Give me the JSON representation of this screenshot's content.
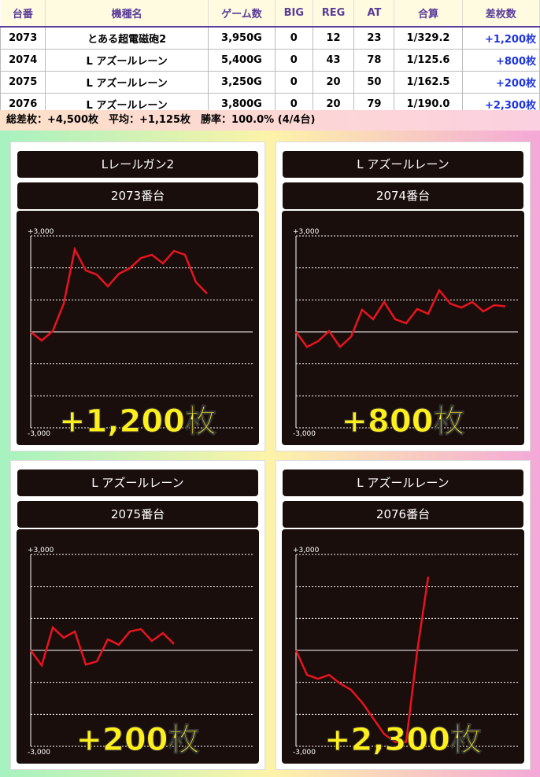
{
  "table": {
    "headers": [
      "台番",
      "機種名",
      "ゲーム数",
      "BIG",
      "REG",
      "AT",
      "合算",
      "差枚数"
    ],
    "rows": [
      [
        "2073",
        "とある超電磁砲2",
        "3,950G",
        "0",
        "12",
        "23",
        "1/329.2",
        "+1,200枚"
      ],
      [
        "2074",
        "L アズールレーン",
        "5,400G",
        "0",
        "43",
        "78",
        "1/125.6",
        "+800枚"
      ],
      [
        "2075",
        "L アズールレーン",
        "3,250G",
        "0",
        "20",
        "50",
        "1/162.5",
        "+200枚"
      ],
      [
        "2076",
        "L アズールレーン",
        "3,800G",
        "0",
        "20",
        "79",
        "1/190.0",
        "+2,300枚"
      ]
    ]
  },
  "summary": "総差枚：+4,500枚　平均：+1,125枚　勝率：100.0% (4/4台)",
  "panels": [
    {
      "machine": "Lレールガン2",
      "unit": "2073番台",
      "result": "+1,200枚",
      "chart_data": {
        "type": "line",
        "ylim": [
          -3000,
          3000
        ],
        "yticks": [
          {
            "value": 3000,
            "label": "+3,000"
          },
          {
            "value": -3000,
            "label": "-3,000"
          }
        ],
        "ygrid": [
          2000,
          1000,
          0,
          -1000,
          -2000
        ],
        "color": "#e8141e",
        "values": [
          0,
          -270,
          25,
          885,
          2580,
          1920,
          1790,
          1425,
          1815,
          1990,
          2310,
          2410,
          2140,
          2530,
          2410,
          1550,
          1200
        ]
      }
    },
    {
      "machine": "L アズールレーン",
      "unit": "2074番台",
      "result": "+800枚",
      "chart_data": {
        "type": "line",
        "ylim": [
          -3000,
          3000
        ],
        "yticks": [
          {
            "value": 3000,
            "label": "+3,000"
          },
          {
            "value": -3000,
            "label": "-3,000"
          }
        ],
        "ygrid": [
          2000,
          1000,
          0,
          -1000,
          -2000
        ],
        "color": "#e8141e",
        "values": [
          0,
          -470,
          -295,
          25,
          -470,
          -150,
          690,
          395,
          935,
          395,
          270,
          715,
          565,
          1300,
          885,
          760,
          935,
          640,
          835,
          800
        ]
      }
    },
    {
      "machine": "L アズールレーン",
      "unit": "2075番台",
      "result": "+200枚",
      "chart_data": {
        "type": "line",
        "ylim": [
          -3000,
          3000
        ],
        "yticks": [
          {
            "value": 3000,
            "label": "+3,000"
          },
          {
            "value": -3000,
            "label": "-3,000"
          }
        ],
        "ygrid": [
          2000,
          1000,
          0,
          -1000,
          -2000
        ],
        "color": "#e8141e",
        "values": [
          0,
          -470,
          715,
          395,
          590,
          -445,
          -345,
          345,
          175,
          590,
          665,
          295,
          540,
          200
        ]
      }
    },
    {
      "machine": "L アズールレーン",
      "unit": "2076番台",
      "result": "+2,300枚",
      "chart_data": {
        "type": "line",
        "ylim": [
          -3000,
          3000
        ],
        "yticks": [
          {
            "value": 3000,
            "label": "+3,000"
          },
          {
            "value": -3000,
            "label": "-3,000"
          }
        ],
        "ygrid": [
          2000,
          1000,
          0,
          -1000,
          -2000
        ],
        "color": "#e8141e",
        "values": [
          0,
          -765,
          -890,
          -765,
          -1035,
          -1235,
          -1630,
          -2120,
          -2615,
          -2865,
          -2865,
          -25,
          2300
        ]
      }
    }
  ]
}
